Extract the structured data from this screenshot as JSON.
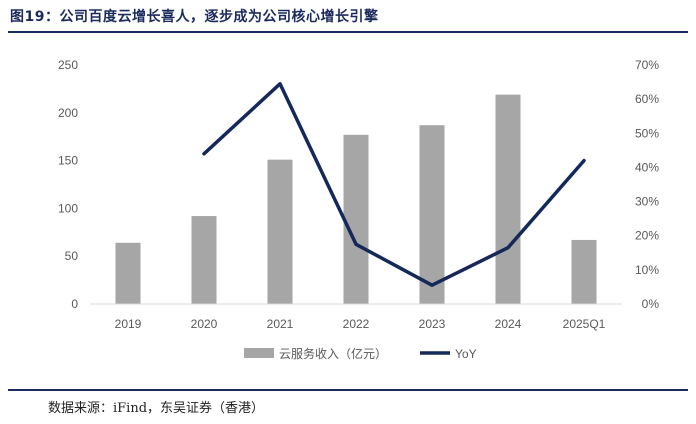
{
  "header": {
    "title": "图19：公司百度云增长喜人，逐步成为公司核心增长引擎"
  },
  "footer": {
    "source": "数据来源：iFind，东吴证券（香港）"
  },
  "chart_data": {
    "type": "bar",
    "categories": [
      "2019",
      "2020",
      "2021",
      "2022",
      "2023",
      "2024",
      "2025Q1"
    ],
    "series": [
      {
        "name": "云服务收入（亿元）",
        "type": "bar",
        "axis": "left",
        "values": [
          64,
          92,
          151,
          177,
          187,
          219,
          67
        ]
      },
      {
        "name": "YoY",
        "type": "line",
        "axis": "right",
        "unit": "%",
        "values": [
          null,
          44,
          64.5,
          17.5,
          5.5,
          16.5,
          42
        ]
      }
    ],
    "ylim_left": [
      0,
      250
    ],
    "yticks_left": [
      "0",
      "50",
      "100",
      "150",
      "200",
      "250"
    ],
    "ylim_right": [
      0,
      70
    ],
    "yticks_right": [
      "0%",
      "10%",
      "20%",
      "30%",
      "40%",
      "50%",
      "60%",
      "70%"
    ],
    "colors": {
      "bar": "#a6a6a6",
      "line": "#14285a",
      "axis": "#d9d9d9",
      "tick_text": "#595959"
    },
    "legend_position": "bottom"
  }
}
